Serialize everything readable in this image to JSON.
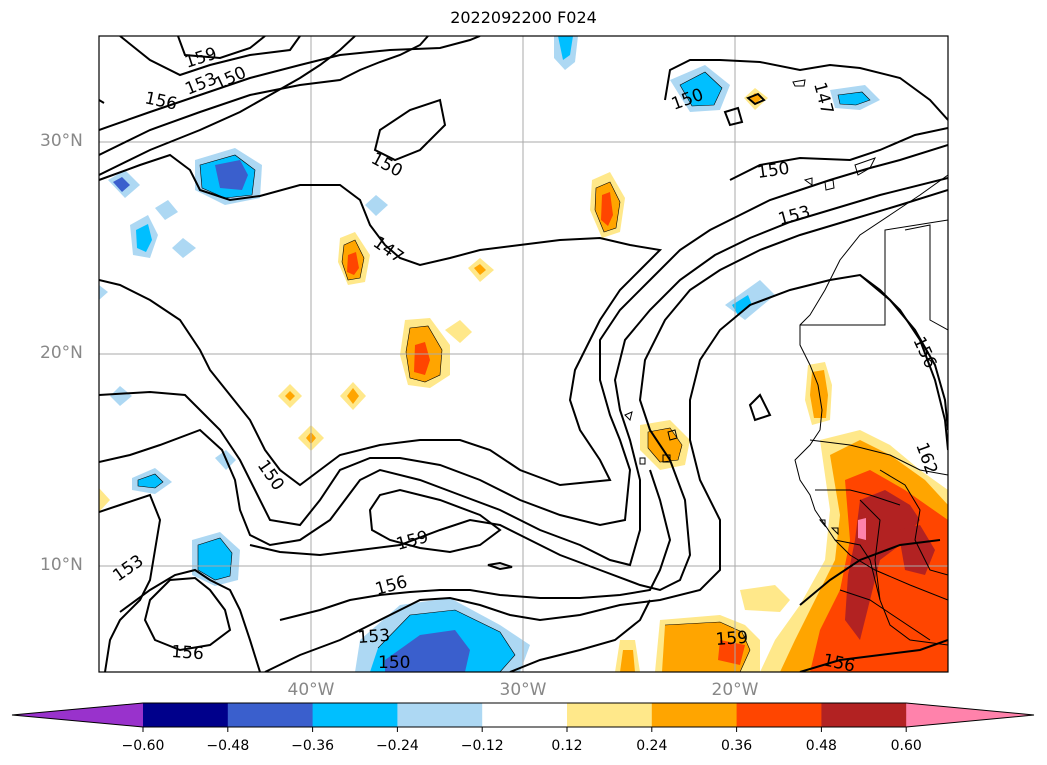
{
  "title": "2022092200 F024",
  "lat_labels": [
    "30°N",
    "20°N",
    "10°N"
  ],
  "lon_labels": [
    "40°W",
    "30°W",
    "20°W"
  ],
  "contour_labels": [
    "159",
    "153",
    "150",
    "156",
    "150",
    "150",
    "147",
    "147",
    "150",
    "153",
    "156",
    "150",
    "162",
    "159",
    "153",
    "156",
    "156",
    "153",
    "150",
    "159",
    "156"
  ],
  "colorbar": {
    "ticks": [
      "−0.60",
      "−0.48",
      "−0.36",
      "−0.24",
      "−0.12",
      "0.12",
      "0.24",
      "0.36",
      "0.48",
      "0.60"
    ],
    "colors": [
      "#9932cc",
      "#00008b",
      "#3a5fcd",
      "#00bfff",
      "#add8f3",
      "#ffffff",
      "#ffe88a",
      "#ffa500",
      "#ff4500",
      "#b22222",
      "#ff82ab"
    ]
  }
}
